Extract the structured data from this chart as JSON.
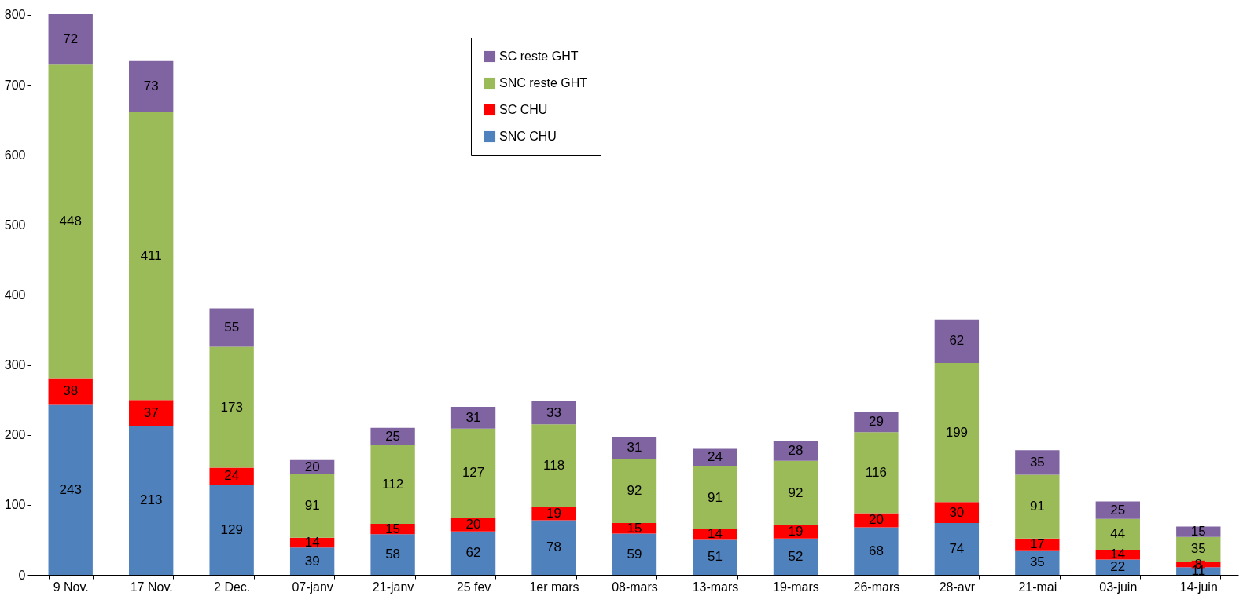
{
  "chart_data": {
    "type": "bar",
    "stacked": true,
    "data_labels": true,
    "grid": false,
    "legend": "top",
    "categories": [
      "9 Nov.",
      "17 Nov.",
      "2 Dec.",
      "07-janv",
      "21-janv",
      "25 fev",
      "1er mars",
      "08-mars",
      "13-mars",
      "19-mars",
      "26-mars",
      "28-avr",
      "21-mai",
      "03-juin",
      "14-juin"
    ],
    "ylim": [
      0,
      801
    ],
    "yticks": [
      0,
      100,
      200,
      300,
      400,
      500,
      600,
      700,
      800
    ],
    "series": [
      {
        "name": "SNC CHU",
        "color": "#4f81bd",
        "values": [
          243,
          213,
          129,
          39,
          58,
          62,
          78,
          59,
          51,
          52,
          68,
          74,
          35,
          22,
          11
        ]
      },
      {
        "name": "SC CHU",
        "color": "#ff0000",
        "values": [
          38,
          37,
          24,
          14,
          15,
          20,
          19,
          15,
          14,
          19,
          20,
          30,
          17,
          14,
          8
        ]
      },
      {
        "name": "SNC reste GHT",
        "color": "#9bbb59",
        "values": [
          448,
          411,
          173,
          91,
          112,
          127,
          118,
          92,
          91,
          92,
          116,
          199,
          91,
          44,
          35
        ]
      },
      {
        "name": "SC reste GHT",
        "color": "#8064a2",
        "values": [
          72,
          73,
          55,
          20,
          25,
          31,
          33,
          31,
          24,
          28,
          29,
          62,
          35,
          25,
          15
        ]
      }
    ]
  }
}
